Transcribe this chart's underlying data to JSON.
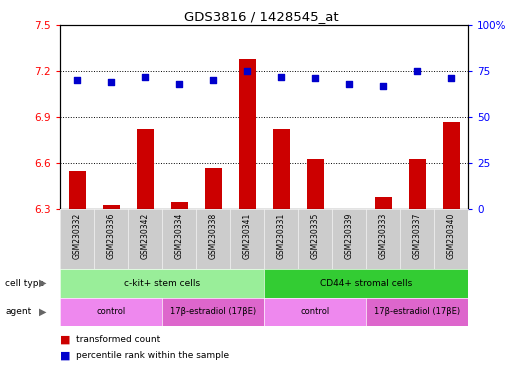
{
  "title": "GDS3816 / 1428545_at",
  "samples": [
    "GSM230332",
    "GSM230336",
    "GSM230342",
    "GSM230334",
    "GSM230338",
    "GSM230341",
    "GSM230331",
    "GSM230335",
    "GSM230339",
    "GSM230333",
    "GSM230337",
    "GSM230340"
  ],
  "bar_values": [
    6.55,
    6.33,
    6.82,
    6.35,
    6.57,
    7.28,
    6.82,
    6.63,
    6.3,
    6.38,
    6.63,
    6.87
  ],
  "percentile_values": [
    70,
    69,
    72,
    68,
    70,
    75,
    72,
    71,
    68,
    67,
    75,
    71
  ],
  "ylim_left": [
    6.3,
    7.5
  ],
  "ylim_right": [
    0,
    100
  ],
  "yticks_left": [
    6.3,
    6.6,
    6.9,
    7.2,
    7.5
  ],
  "yticks_right": [
    0,
    25,
    50,
    75,
    100
  ],
  "ytick_labels_right": [
    "0",
    "25",
    "50",
    "75",
    "100%"
  ],
  "bar_color": "#cc0000",
  "dot_color": "#0000cc",
  "bar_width": 0.5,
  "cell_type_groups": [
    {
      "label": "c-kit+ stem cells",
      "start": 0,
      "end": 5,
      "color": "#99ee99"
    },
    {
      "label": "CD44+ stromal cells",
      "start": 6,
      "end": 11,
      "color": "#33cc33"
    }
  ],
  "agent_groups": [
    {
      "label": "control",
      "start": 0,
      "end": 2,
      "color": "#ee88ee"
    },
    {
      "label": "17β-estradiol (17βE)",
      "start": 3,
      "end": 5,
      "color": "#dd66cc"
    },
    {
      "label": "control",
      "start": 6,
      "end": 8,
      "color": "#ee88ee"
    },
    {
      "label": "17β-estradiol (17βE)",
      "start": 9,
      "end": 11,
      "color": "#dd66cc"
    }
  ],
  "legend_items": [
    {
      "label": "transformed count",
      "color": "#cc0000"
    },
    {
      "label": "percentile rank within the sample",
      "color": "#0000cc"
    }
  ],
  "gridline_yticks": [
    6.6,
    6.9,
    7.2
  ],
  "sample_box_color": "#cccccc",
  "plot_bg": "white"
}
